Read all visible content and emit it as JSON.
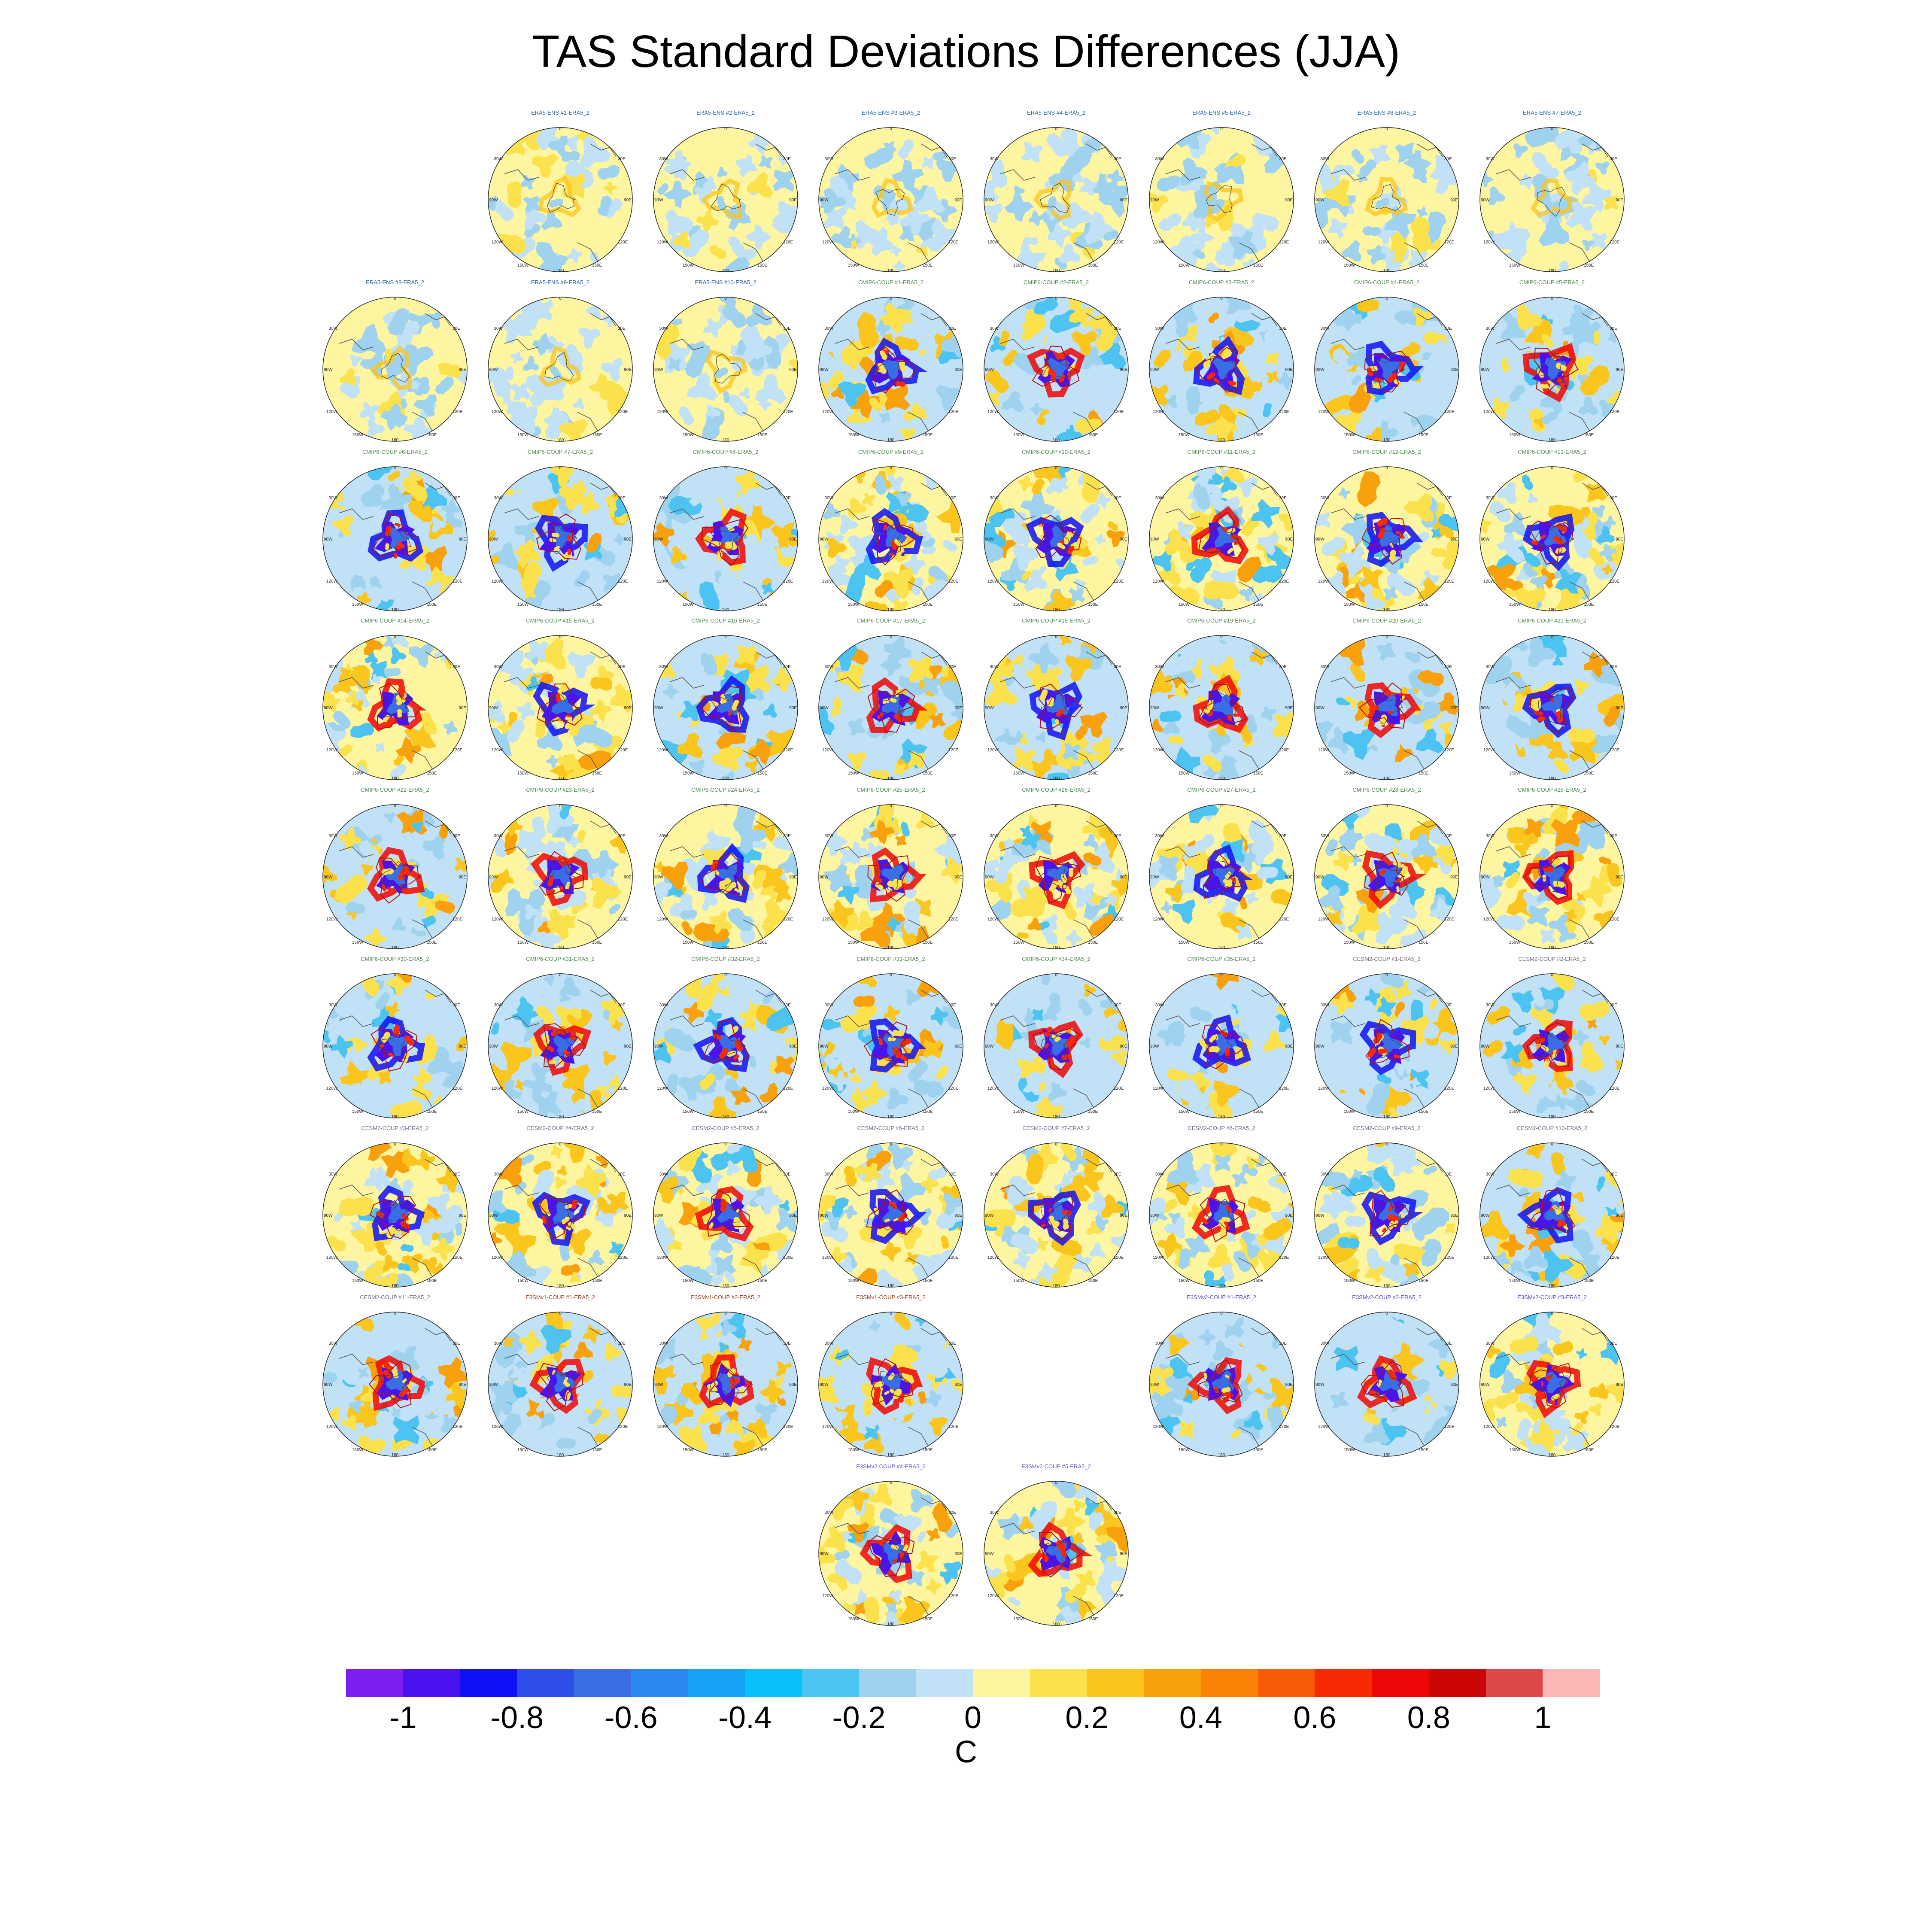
{
  "title": "TAS Standard Deviations Differences (JJA)",
  "colorbar": {
    "unit": "C",
    "colors": [
      "#7d1ff0",
      "#4a12f0",
      "#1010f5",
      "#2f4de8",
      "#3a6ee6",
      "#2b87f2",
      "#16a2f5",
      "#08bff7",
      "#4cc3f0",
      "#9fd2ee",
      "#c0e1f6",
      "#fdf5a0",
      "#fbe24c",
      "#fac51c",
      "#f9a10c",
      "#f98207",
      "#f85a05",
      "#f82a04",
      "#ee0707",
      "#cc0606",
      "#dd4848",
      "#fcb6b6"
    ],
    "tick_labels": [
      "-1",
      "-0.8",
      "-0.6",
      "-0.4",
      "-0.2",
      "0",
      "0.2",
      "0.4",
      "0.6",
      "0.8",
      "1"
    ]
  },
  "map_labels": {
    "top": "0",
    "bottom": "180",
    "left_upper": "30W",
    "left_mid": "90W",
    "left_lower": "120W",
    "right_upper": "30E",
    "right_mid": "90E",
    "right_lower": "120E",
    "bottom_left": "150W",
    "bottom_right": "150E"
  },
  "rows": [
    {
      "panels": [
        null,
        {
          "label": "ERA5-ENS   #1-ERA5_2",
          "group": "era5"
        },
        {
          "label": "ERA5-ENS   #2-ERA5_2",
          "group": "era5"
        },
        {
          "label": "ERA5-ENS   #3-ERA5_2",
          "group": "era5"
        },
        {
          "label": "ERA5-ENS   #4-ERA5_2",
          "group": "era5"
        },
        {
          "label": "ERA5-ENS   #5-ERA5_2",
          "group": "era5"
        },
        {
          "label": "ERA5-ENS   #6-ERA5_2",
          "group": "era5"
        },
        {
          "label": "ERA5-ENS   #7-ERA5_2",
          "group": "era5"
        }
      ]
    },
    {
      "panels": [
        {
          "label": "ERA5-ENS   #8-ERA5_2",
          "group": "era5"
        },
        {
          "label": "ERA5-ENS   #9-ERA5_2",
          "group": "era5"
        },
        {
          "label": "ERA5-ENS   #10-ERA5_2",
          "group": "era5"
        },
        {
          "label": "CMIP6-COUP   #1-ERA5_2",
          "group": "cmip6"
        },
        {
          "label": "CMIP6-COUP   #2-ERA5_2",
          "group": "cmip6"
        },
        {
          "label": "CMIP6-COUP   #3-ERA5_2",
          "group": "cmip6"
        },
        {
          "label": "CMIP6-COUP   #4-ERA5_2",
          "group": "cmip6"
        },
        {
          "label": "CMIP6-COUP   #5-ERA5_2",
          "group": "cmip6"
        }
      ]
    },
    {
      "panels": [
        {
          "label": "CMIP6-COUP   #6-ERA5_2",
          "group": "cmip6"
        },
        {
          "label": "CMIP6-COUP   #7-ERA5_2",
          "group": "cmip6"
        },
        {
          "label": "CMIP6-COUP   #8-ERA5_2",
          "group": "cmip6"
        },
        {
          "label": "CMIP6-COUP   #9-ERA5_2",
          "group": "cmip6"
        },
        {
          "label": "CMIP6-COUP   #10-ERA5_2",
          "group": "cmip6"
        },
        {
          "label": "CMIP6-COUP   #11-ERA5_2",
          "group": "cmip6"
        },
        {
          "label": "CMIP6-COUP   #12-ERA5_2",
          "group": "cmip6"
        },
        {
          "label": "CMIP6-COUP   #13-ERA5_2",
          "group": "cmip6"
        }
      ]
    },
    {
      "panels": [
        {
          "label": "CMIP6-COUP   #14-ERA5_2",
          "group": "cmip6"
        },
        {
          "label": "CMIP6-COUP   #15-ERA5_2",
          "group": "cmip6"
        },
        {
          "label": "CMIP6-COUP   #16-ERA5_2",
          "group": "cmip6"
        },
        {
          "label": "CMIP6-COUP   #17-ERA5_2",
          "group": "cmip6"
        },
        {
          "label": "CMIP6-COUP   #18-ERA5_2",
          "group": "cmip6"
        },
        {
          "label": "CMIP6-COUP   #19-ERA5_2",
          "group": "cmip6"
        },
        {
          "label": "CMIP6-COUP   #20-ERA5_2",
          "group": "cmip6"
        },
        {
          "label": "CMIP6-COUP   #21-ERA5_2",
          "group": "cmip6"
        }
      ]
    },
    {
      "panels": [
        {
          "label": "CMIP6-COUP   #22-ERA5_2",
          "group": "cmip6"
        },
        {
          "label": "CMIP6-COUP   #23-ERA5_2",
          "group": "cmip6"
        },
        {
          "label": "CMIP6-COUP   #24-ERA5_2",
          "group": "cmip6"
        },
        {
          "label": "CMIP6-COUP   #25-ERA5_2",
          "group": "cmip6"
        },
        {
          "label": "CMIP6-COUP   #26-ERA5_2",
          "group": "cmip6"
        },
        {
          "label": "CMIP6-COUP   #27-ERA5_2",
          "group": "cmip6"
        },
        {
          "label": "CMIP6-COUP   #28-ERA5_2",
          "group": "cmip6"
        },
        {
          "label": "CMIP6-COUP   #29-ERA5_2",
          "group": "cmip6"
        }
      ]
    },
    {
      "panels": [
        {
          "label": "CMIP6-COUP   #30-ERA5_2",
          "group": "cmip6"
        },
        {
          "label": "CMIP6-COUP   #31-ERA5_2",
          "group": "cmip6"
        },
        {
          "label": "CMIP6-COUP   #32-ERA5_2",
          "group": "cmip6"
        },
        {
          "label": "CMIP6-COUP   #33-ERA5_2",
          "group": "cmip6"
        },
        {
          "label": "CMIP6-COUP   #34-ERA5_2",
          "group": "cmip6"
        },
        {
          "label": "CMIP6-COUP   #35-ERA5_2",
          "group": "cmip6"
        },
        {
          "label": "CESM2-COUP   #1-ERA5_2",
          "group": "cesm2"
        },
        {
          "label": "CESM2-COUP   #2-ERA5_2",
          "group": "cesm2"
        }
      ]
    },
    {
      "panels": [
        {
          "label": "CESM2-COUP   #3-ERA5_2",
          "group": "cesm2"
        },
        {
          "label": "CESM2-COUP   #4-ERA5_2",
          "group": "cesm2"
        },
        {
          "label": "CESM2-COUP   #5-ERA5_2",
          "group": "cesm2"
        },
        {
          "label": "CESM2-COUP   #6-ERA5_2",
          "group": "cesm2"
        },
        {
          "label": "CESM2-COUP   #7-ERA5_2",
          "group": "cesm2"
        },
        {
          "label": "CESM2-COUP   #8-ERA5_2",
          "group": "cesm2"
        },
        {
          "label": "CESM2-COUP   #9-ERA5_2",
          "group": "cesm2"
        },
        {
          "label": "CESM2-COUP   #10-ERA5_2",
          "group": "cesm2"
        }
      ]
    },
    {
      "panels": [
        {
          "label": "CESM2-COUP   #11-ERA5_2",
          "group": "cesm2"
        },
        {
          "label": "E3SMv1-COUP   #1-ERA5_2",
          "group": "e3smv1"
        },
        {
          "label": "E3SMv1-COUP   #2-ERA5_2",
          "group": "e3smv1"
        },
        {
          "label": "E3SMv1-COUP   #3-ERA5_2",
          "group": "e3smv1"
        },
        null,
        {
          "label": "E3SMv2-COUP   #1-ERA5_2",
          "group": "e3smv2"
        },
        {
          "label": "E3SMv2-COUP   #2-ERA5_2",
          "group": "e3smv2"
        },
        {
          "label": "E3SMv2-COUP   #3-ERA5_2",
          "group": "e3smv2"
        }
      ]
    },
    {
      "panels": [
        null,
        null,
        null,
        {
          "label": "E3SMv2-COUP   #4-ERA5_2",
          "group": "e3smv2"
        },
        {
          "label": "E3SMv2-COUP   #5-ERA5_2",
          "group": "e3smv2"
        },
        null,
        null,
        null
      ]
    }
  ],
  "group_colors": {
    "era5": "#1f5fa8",
    "cmip6": "#4f8a4f",
    "cesm2": "#7d6a8a",
    "e3smv1": "#a0401a",
    "e3smv2": "#6a4fd0"
  }
}
